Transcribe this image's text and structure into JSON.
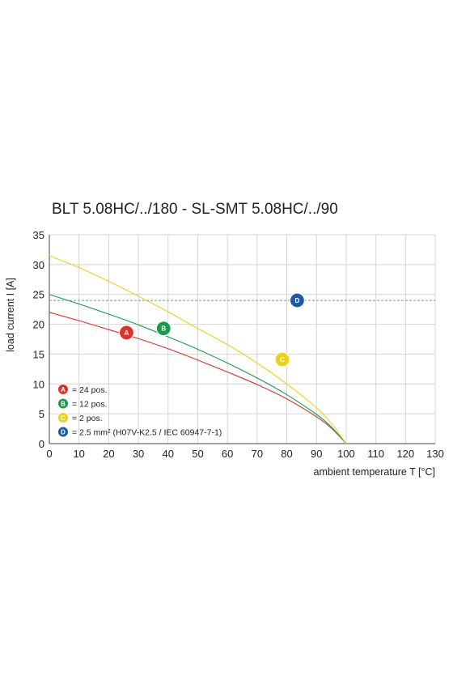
{
  "chart_data": {
    "type": "line",
    "title": "BLT 5.08HC/../180 - SL-SMT 5.08HC/../90",
    "xlabel": "ambient temperature T [°C]",
    "ylabel": "load current I [A]",
    "xlim": [
      0,
      130
    ],
    "ylim": [
      0,
      35
    ],
    "xticks": [
      0,
      10,
      20,
      30,
      40,
      50,
      60,
      70,
      80,
      90,
      100,
      110,
      120,
      130
    ],
    "yticks": [
      0,
      5,
      10,
      15,
      20,
      25,
      30,
      35
    ],
    "grid": true,
    "legend_position": "bottom-left",
    "series": [
      {
        "marker": "A",
        "name": "= 24 pos.",
        "color": "#e0322d",
        "x": [
          0,
          10,
          20,
          30,
          40,
          50,
          60,
          70,
          80,
          90,
          95,
          100
        ],
        "y": [
          22,
          20.6,
          19.1,
          17.6,
          15.9,
          14.0,
          12.0,
          9.9,
          7.5,
          4.5,
          2.6,
          0
        ]
      },
      {
        "marker": "B",
        "name": "= 12 pos.",
        "color": "#1a9a4b",
        "x": [
          0,
          10,
          20,
          30,
          40,
          50,
          60,
          70,
          80,
          90,
          95,
          100
        ],
        "y": [
          25,
          23.4,
          21.7,
          19.9,
          17.9,
          15.8,
          13.5,
          11.0,
          8.2,
          4.9,
          2.8,
          0
        ]
      },
      {
        "marker": "C",
        "name": "= 2 pos.",
        "color": "#e8d21e",
        "x": [
          0,
          10,
          20,
          30,
          40,
          50,
          60,
          70,
          80,
          90,
          95,
          100
        ],
        "y": [
          31.5,
          29.5,
          27.2,
          24.7,
          22.1,
          19.3,
          16.6,
          13.5,
          10.0,
          6.0,
          3.4,
          0
        ]
      },
      {
        "marker": "D",
        "name": "= 2.5 mm² (H07V-K2.5 / IEC 60947-7-1)",
        "color": "#1c5aa6",
        "style": "dashed",
        "x": [
          0,
          130
        ],
        "y": [
          24,
          24
        ]
      }
    ],
    "markers": [
      {
        "label": "A",
        "x": 26,
        "y": 18.6
      },
      {
        "label": "B",
        "x": 38.5,
        "y": 19.3
      },
      {
        "label": "C",
        "x": 78.5,
        "y": 14.1
      },
      {
        "label": "D",
        "x": 83.5,
        "y": 24
      }
    ]
  }
}
